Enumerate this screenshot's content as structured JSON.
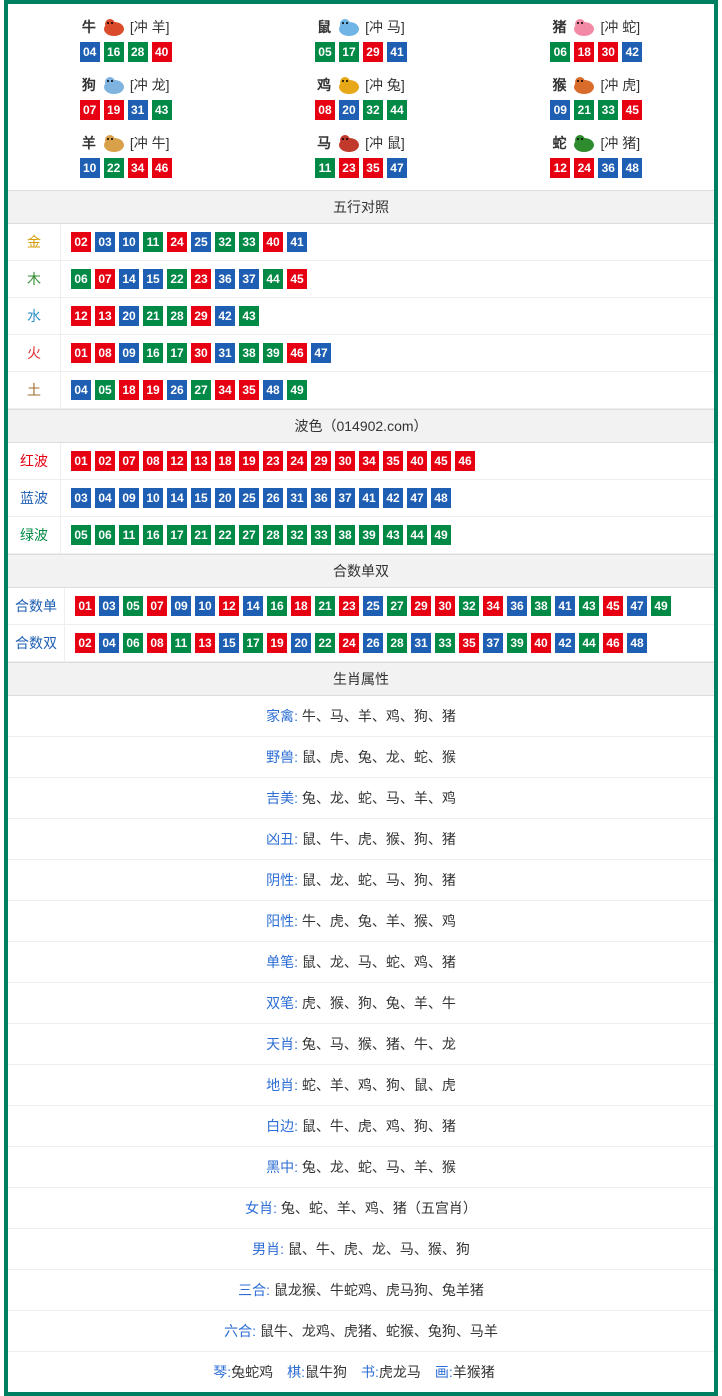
{
  "ball_colors": {
    "red": "#e60012",
    "blue": "#1e5fb3",
    "green": "#008a45"
  },
  "color_map": {
    "01": "red",
    "02": "red",
    "07": "red",
    "08": "red",
    "12": "red",
    "13": "red",
    "18": "red",
    "19": "red",
    "23": "red",
    "24": "red",
    "29": "red",
    "30": "red",
    "34": "red",
    "35": "red",
    "40": "red",
    "45": "red",
    "46": "red",
    "03": "blue",
    "04": "blue",
    "09": "blue",
    "10": "blue",
    "14": "blue",
    "15": "blue",
    "20": "blue",
    "25": "blue",
    "26": "blue",
    "31": "blue",
    "36": "blue",
    "37": "blue",
    "41": "blue",
    "42": "blue",
    "47": "blue",
    "48": "blue",
    "05": "green",
    "06": "green",
    "11": "green",
    "16": "green",
    "17": "green",
    "21": "green",
    "22": "green",
    "27": "green",
    "28": "green",
    "32": "green",
    "33": "green",
    "38": "green",
    "39": "green",
    "43": "green",
    "44": "green",
    "49": "green"
  },
  "zodiac": [
    {
      "name": "牛",
      "chong": "[冲 羊]",
      "icon": "ox",
      "balls": [
        "04",
        "16",
        "28",
        "40"
      ]
    },
    {
      "name": "鼠",
      "chong": "[冲 马]",
      "icon": "rat",
      "balls": [
        "05",
        "17",
        "29",
        "41"
      ]
    },
    {
      "name": "猪",
      "chong": "[冲 蛇]",
      "icon": "pig",
      "balls": [
        "06",
        "18",
        "30",
        "42"
      ]
    },
    {
      "name": "狗",
      "chong": "[冲 龙]",
      "icon": "dog",
      "balls": [
        "07",
        "19",
        "31",
        "43"
      ]
    },
    {
      "name": "鸡",
      "chong": "[冲 兔]",
      "icon": "rooster",
      "balls": [
        "08",
        "20",
        "32",
        "44"
      ]
    },
    {
      "name": "猴",
      "chong": "[冲 虎]",
      "icon": "monkey",
      "balls": [
        "09",
        "21",
        "33",
        "45"
      ]
    },
    {
      "name": "羊",
      "chong": "[冲 牛]",
      "icon": "goat",
      "balls": [
        "10",
        "22",
        "34",
        "46"
      ]
    },
    {
      "name": "马",
      "chong": "[冲 鼠]",
      "icon": "horse",
      "balls": [
        "11",
        "23",
        "35",
        "47"
      ]
    },
    {
      "name": "蛇",
      "chong": "[冲 猪]",
      "icon": "snake",
      "balls": [
        "12",
        "24",
        "36",
        "48"
      ]
    }
  ],
  "headers": {
    "wuxing": "五行对照",
    "bose": "波色（014902.com）",
    "heshu": "合数单双",
    "shengxiao": "生肖属性"
  },
  "wuxing": [
    {
      "label": "金",
      "cls": "lbl-gold",
      "balls": [
        "02",
        "03",
        "10",
        "11",
        "24",
        "25",
        "32",
        "33",
        "40",
        "41"
      ]
    },
    {
      "label": "木",
      "cls": "lbl-wood",
      "balls": [
        "06",
        "07",
        "14",
        "15",
        "22",
        "23",
        "36",
        "37",
        "44",
        "45"
      ]
    },
    {
      "label": "水",
      "cls": "lbl-water",
      "balls": [
        "12",
        "13",
        "20",
        "21",
        "28",
        "29",
        "42",
        "43"
      ]
    },
    {
      "label": "火",
      "cls": "lbl-fire",
      "balls": [
        "01",
        "08",
        "09",
        "16",
        "17",
        "30",
        "31",
        "38",
        "39",
        "46",
        "47"
      ]
    },
    {
      "label": "土",
      "cls": "lbl-earth",
      "balls": [
        "04",
        "05",
        "18",
        "19",
        "26",
        "27",
        "34",
        "35",
        "48",
        "49"
      ]
    }
  ],
  "bose": [
    {
      "label": "红波",
      "cls": "lbl-red",
      "balls": [
        "01",
        "02",
        "07",
        "08",
        "12",
        "13",
        "18",
        "19",
        "23",
        "24",
        "29",
        "30",
        "34",
        "35",
        "40",
        "45",
        "46"
      ]
    },
    {
      "label": "蓝波",
      "cls": "lbl-blue",
      "balls": [
        "03",
        "04",
        "09",
        "10",
        "14",
        "15",
        "20",
        "25",
        "26",
        "31",
        "36",
        "37",
        "41",
        "42",
        "47",
        "48"
      ]
    },
    {
      "label": "绿波",
      "cls": "lbl-green",
      "balls": [
        "05",
        "06",
        "11",
        "16",
        "17",
        "21",
        "22",
        "27",
        "28",
        "32",
        "33",
        "38",
        "39",
        "43",
        "44",
        "49"
      ]
    }
  ],
  "heshu": [
    {
      "label": "合数单",
      "cls": "lbl-blue",
      "balls": [
        "01",
        "03",
        "05",
        "07",
        "09",
        "10",
        "12",
        "14",
        "16",
        "18",
        "21",
        "23",
        "25",
        "27",
        "29",
        "30",
        "32",
        "34",
        "36",
        "38",
        "41",
        "43",
        "45",
        "47",
        "49"
      ]
    },
    {
      "label": "合数双",
      "cls": "lbl-blue",
      "balls": [
        "02",
        "04",
        "06",
        "08",
        "11",
        "13",
        "15",
        "17",
        "19",
        "20",
        "22",
        "24",
        "26",
        "28",
        "31",
        "33",
        "35",
        "37",
        "39",
        "40",
        "42",
        "44",
        "46",
        "48"
      ]
    }
  ],
  "attrs": [
    {
      "key": "家禽: ",
      "val": "牛、马、羊、鸡、狗、猪"
    },
    {
      "key": "野兽: ",
      "val": "鼠、虎、兔、龙、蛇、猴"
    },
    {
      "key": "吉美: ",
      "val": "兔、龙、蛇、马、羊、鸡"
    },
    {
      "key": "凶丑: ",
      "val": "鼠、牛、虎、猴、狗、猪"
    },
    {
      "key": "阴性: ",
      "val": "鼠、龙、蛇、马、狗、猪"
    },
    {
      "key": "阳性: ",
      "val": "牛、虎、兔、羊、猴、鸡"
    },
    {
      "key": "单笔: ",
      "val": "鼠、龙、马、蛇、鸡、猪"
    },
    {
      "key": "双笔: ",
      "val": "虎、猴、狗、兔、羊、牛"
    },
    {
      "key": "天肖: ",
      "val": "兔、马、猴、猪、牛、龙"
    },
    {
      "key": "地肖: ",
      "val": "蛇、羊、鸡、狗、鼠、虎"
    },
    {
      "key": "白边: ",
      "val": "鼠、牛、虎、鸡、狗、猪"
    },
    {
      "key": "黑中: ",
      "val": "兔、龙、蛇、马、羊、猴"
    },
    {
      "key": "女肖: ",
      "val": "兔、蛇、羊、鸡、猪（五宫肖）"
    },
    {
      "key": "男肖: ",
      "val": "鼠、牛、虎、龙、马、猴、狗"
    },
    {
      "key": "三合: ",
      "val": "鼠龙猴、牛蛇鸡、虎马狗、兔羊猪"
    },
    {
      "key": "六合: ",
      "val": "鼠牛、龙鸡、虎猪、蛇猴、兔狗、马羊"
    }
  ],
  "footer_pairs": [
    {
      "k": "琴:",
      "v": "兔蛇鸡"
    },
    {
      "k": "棋:",
      "v": "鼠牛狗"
    },
    {
      "k": "书:",
      "v": "虎龙马"
    },
    {
      "k": "画:",
      "v": "羊猴猪"
    }
  ],
  "icon_colors": {
    "ox": "#d94b2b",
    "rat": "#6fb5e6",
    "pig": "#f28aa5",
    "dog": "#7fb3e0",
    "rooster": "#e6a817",
    "monkey": "#d96b2b",
    "goat": "#d9a04a",
    "horse": "#c0392b",
    "snake": "#2e8b2e"
  }
}
